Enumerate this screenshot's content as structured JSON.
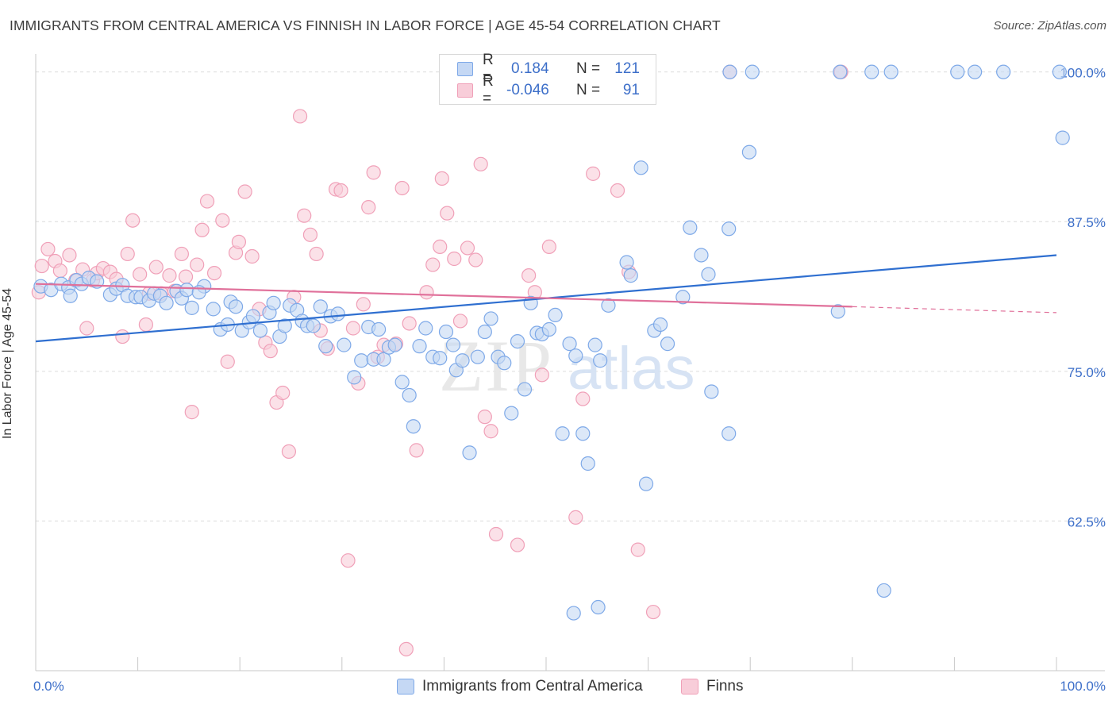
{
  "title": "IMMIGRANTS FROM CENTRAL AMERICA VS FINNISH IN LABOR FORCE | AGE 45-54 CORRELATION CHART",
  "source": "Source: ZipAtlas.com",
  "watermark": {
    "zip": "ZIP",
    "atlas": "atlas"
  },
  "legend": {
    "r_label": "R =",
    "n_label": "N =",
    "series": [
      {
        "name": "Immigrants from Central America",
        "r": "0.184",
        "n": "121",
        "color": "#7ea9e8",
        "fill": "#c5d8f4"
      },
      {
        "name": "Finns",
        "r": "-0.046",
        "n": "91",
        "color": "#f0a0b8",
        "fill": "#f8cdd9"
      }
    ]
  },
  "chart_data": {
    "type": "scatter",
    "title": "IMMIGRANTS FROM CENTRAL AMERICA VS FINNISH IN LABOR FORCE | AGE 45-54 CORRELATION CHART",
    "xlabel": "",
    "ylabel": "In Labor Force | Age 45-54",
    "xlim": [
      0,
      100
    ],
    "ylim": [
      50,
      101.5
    ],
    "x_tick_labels": [
      "0.0%",
      "100.0%"
    ],
    "y_ticks": [
      62.5,
      75.0,
      87.5,
      100.0
    ],
    "y_tick_labels": [
      "62.5%",
      "75.0%",
      "87.5%",
      "100.0%"
    ],
    "grid": true,
    "legend_position": "top-center",
    "series": [
      {
        "name": "Immigrants from Central America",
        "color": "#3d6fc9",
        "trend": {
          "x": [
            0,
            100
          ],
          "y": [
            77.5,
            84.7
          ]
        },
        "points": [
          [
            0.5,
            82.1
          ],
          [
            1.5,
            81.8
          ],
          [
            2.5,
            82.3
          ],
          [
            3.2,
            82.0
          ],
          [
            3.4,
            81.3
          ],
          [
            4.0,
            82.6
          ],
          [
            4.5,
            82.3
          ],
          [
            5.2,
            82.8
          ],
          [
            6.0,
            82.5
          ],
          [
            7.3,
            81.4
          ],
          [
            7.9,
            81.9
          ],
          [
            8.5,
            82.2
          ],
          [
            9.0,
            81.3
          ],
          [
            9.8,
            81.2
          ],
          [
            10.3,
            81.2
          ],
          [
            11.1,
            80.9
          ],
          [
            11.6,
            81.5
          ],
          [
            12.2,
            81.3
          ],
          [
            12.8,
            80.7
          ],
          [
            13.8,
            81.7
          ],
          [
            14.3,
            81.1
          ],
          [
            14.8,
            81.8
          ],
          [
            15.3,
            80.3
          ],
          [
            16.5,
            82.1
          ],
          [
            16.0,
            81.6
          ],
          [
            17.4,
            80.2
          ],
          [
            18.1,
            78.5
          ],
          [
            18.8,
            78.9
          ],
          [
            19.1,
            80.8
          ],
          [
            19.6,
            80.4
          ],
          [
            20.2,
            78.4
          ],
          [
            20.9,
            79.1
          ],
          [
            21.3,
            79.6
          ],
          [
            22.0,
            78.4
          ],
          [
            22.9,
            79.9
          ],
          [
            23.3,
            80.7
          ],
          [
            23.9,
            77.9
          ],
          [
            24.4,
            78.8
          ],
          [
            24.9,
            80.5
          ],
          [
            25.6,
            80.1
          ],
          [
            26.1,
            79.2
          ],
          [
            26.6,
            78.8
          ],
          [
            27.2,
            78.8
          ],
          [
            27.9,
            80.4
          ],
          [
            28.4,
            77.1
          ],
          [
            28.9,
            79.6
          ],
          [
            29.6,
            79.8
          ],
          [
            30.2,
            77.2
          ],
          [
            31.2,
            74.5
          ],
          [
            31.9,
            75.9
          ],
          [
            32.6,
            78.7
          ],
          [
            33.1,
            76.0
          ],
          [
            33.6,
            78.5
          ],
          [
            34.1,
            76.0
          ],
          [
            34.6,
            77.0
          ],
          [
            35.2,
            77.2
          ],
          [
            35.9,
            74.1
          ],
          [
            36.6,
            73.0
          ],
          [
            37.0,
            70.4
          ],
          [
            37.6,
            77.1
          ],
          [
            38.2,
            78.6
          ],
          [
            38.9,
            76.2
          ],
          [
            39.6,
            76.1
          ],
          [
            40.2,
            78.3
          ],
          [
            40.9,
            77.2
          ],
          [
            41.2,
            75.1
          ],
          [
            41.8,
            75.9
          ],
          [
            42.5,
            68.2
          ],
          [
            43.3,
            76.2
          ],
          [
            44.0,
            78.3
          ],
          [
            44.6,
            79.4
          ],
          [
            45.3,
            76.2
          ],
          [
            45.9,
            75.7
          ],
          [
            46.6,
            71.5
          ],
          [
            47.2,
            77.5
          ],
          [
            47.9,
            73.5
          ],
          [
            48.5,
            80.7
          ],
          [
            49.1,
            78.2
          ],
          [
            49.6,
            78.1
          ],
          [
            50.3,
            78.5
          ],
          [
            50.9,
            79.7
          ],
          [
            51.6,
            69.8
          ],
          [
            52.3,
            77.3
          ],
          [
            52.9,
            76.3
          ],
          [
            53.6,
            69.8
          ],
          [
            54.1,
            67.3
          ],
          [
            54.8,
            77.2
          ],
          [
            55.3,
            75.9
          ],
          [
            56.1,
            80.5
          ],
          [
            57.9,
            84.1
          ],
          [
            58.3,
            83.0
          ],
          [
            59.3,
            92.0
          ],
          [
            59.8,
            65.6
          ],
          [
            60.6,
            78.4
          ],
          [
            61.2,
            78.9
          ],
          [
            61.9,
            77.3
          ],
          [
            63.4,
            81.2
          ],
          [
            64.1,
            87.0
          ],
          [
            65.2,
            84.7
          ],
          [
            65.9,
            83.1
          ],
          [
            66.2,
            73.3
          ],
          [
            67.9,
            86.9
          ],
          [
            67.9,
            69.8
          ],
          [
            69.9,
            93.3
          ],
          [
            70.2,
            100
          ],
          [
            78.8,
            100
          ],
          [
            78.6,
            80.0
          ],
          [
            81.9,
            100
          ],
          [
            83.1,
            56.7
          ],
          [
            83.8,
            100
          ],
          [
            90.3,
            100
          ],
          [
            92.0,
            100
          ],
          [
            94.8,
            100
          ],
          [
            100.3,
            100
          ],
          [
            100.6,
            94.5
          ],
          [
            52.7,
            54.8
          ],
          [
            55.1,
            55.3
          ],
          [
            68.0,
            100
          ]
        ]
      },
      {
        "name": "Finns",
        "color": "#e0709a",
        "trend": {
          "x": [
            0,
            80
          ],
          "y": [
            82.3,
            80.4
          ]
        },
        "trend_dashed": {
          "x": [
            80,
            100
          ],
          "y": [
            80.4,
            79.9
          ]
        },
        "points": [
          [
            0.3,
            81.6
          ],
          [
            0.6,
            83.8
          ],
          [
            1.2,
            85.2
          ],
          [
            1.9,
            84.2
          ],
          [
            2.4,
            83.4
          ],
          [
            3.3,
            84.7
          ],
          [
            3.9,
            82.6
          ],
          [
            4.6,
            83.5
          ],
          [
            5.0,
            78.6
          ],
          [
            5.6,
            82.6
          ],
          [
            6.0,
            83.2
          ],
          [
            6.6,
            83.6
          ],
          [
            7.3,
            83.3
          ],
          [
            7.9,
            82.7
          ],
          [
            8.5,
            77.9
          ],
          [
            9.0,
            84.8
          ],
          [
            9.5,
            87.6
          ],
          [
            10.2,
            83.1
          ],
          [
            10.8,
            78.9
          ],
          [
            11.1,
            81.5
          ],
          [
            11.8,
            83.7
          ],
          [
            12.3,
            81.5
          ],
          [
            13.1,
            83.0
          ],
          [
            13.6,
            81.7
          ],
          [
            14.3,
            84.8
          ],
          [
            14.7,
            82.9
          ],
          [
            15.3,
            71.6
          ],
          [
            15.8,
            83.9
          ],
          [
            16.3,
            86.8
          ],
          [
            16.8,
            89.2
          ],
          [
            17.5,
            83.2
          ],
          [
            18.3,
            87.6
          ],
          [
            18.8,
            75.8
          ],
          [
            19.6,
            84.9
          ],
          [
            19.9,
            85.8
          ],
          [
            20.5,
            90.0
          ],
          [
            21.2,
            84.6
          ],
          [
            21.9,
            80.2
          ],
          [
            22.5,
            77.4
          ],
          [
            23.0,
            76.7
          ],
          [
            23.6,
            72.4
          ],
          [
            24.2,
            73.2
          ],
          [
            24.8,
            68.3
          ],
          [
            25.3,
            81.2
          ],
          [
            25.9,
            96.3
          ],
          [
            26.3,
            88.0
          ],
          [
            26.9,
            86.4
          ],
          [
            27.5,
            84.8
          ],
          [
            27.9,
            78.4
          ],
          [
            28.6,
            76.9
          ],
          [
            29.4,
            90.2
          ],
          [
            29.9,
            90.1
          ],
          [
            30.6,
            59.2
          ],
          [
            31.1,
            78.6
          ],
          [
            31.6,
            74.0
          ],
          [
            32.1,
            80.6
          ],
          [
            32.6,
            88.7
          ],
          [
            33.1,
            91.6
          ],
          [
            33.5,
            76.2
          ],
          [
            34.1,
            77.2
          ],
          [
            35.3,
            77.3
          ],
          [
            35.9,
            90.3
          ],
          [
            36.6,
            79.0
          ],
          [
            37.3,
            68.4
          ],
          [
            38.3,
            81.6
          ],
          [
            38.9,
            83.9
          ],
          [
            39.6,
            85.4
          ],
          [
            39.8,
            91.1
          ],
          [
            40.3,
            88.2
          ],
          [
            41.0,
            84.4
          ],
          [
            41.6,
            79.2
          ],
          [
            42.3,
            85.3
          ],
          [
            43.1,
            84.3
          ],
          [
            43.6,
            92.3
          ],
          [
            44.0,
            71.2
          ],
          [
            44.6,
            70.0
          ],
          [
            45.1,
            61.4
          ],
          [
            47.2,
            60.5
          ],
          [
            48.3,
            83.0
          ],
          [
            48.9,
            81.6
          ],
          [
            49.6,
            74.7
          ],
          [
            50.3,
            85.4
          ],
          [
            52.9,
            62.8
          ],
          [
            53.6,
            72.7
          ],
          [
            54.6,
            91.5
          ],
          [
            57.0,
            90.1
          ],
          [
            58.1,
            83.3
          ],
          [
            59.0,
            60.1
          ],
          [
            60.5,
            54.9
          ],
          [
            68.0,
            100
          ],
          [
            78.9,
            100
          ],
          [
            36.3,
            51.8
          ]
        ]
      }
    ]
  }
}
